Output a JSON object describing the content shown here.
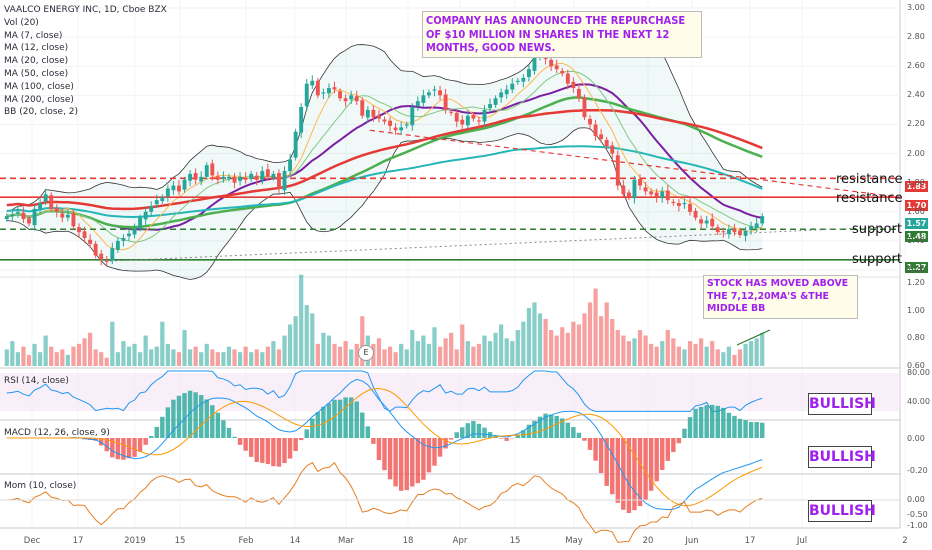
{
  "chart_data": {
    "type": "candlestick",
    "title": "VAALCO ENERGY INC, 1D, Cboe BZX",
    "ylim": [
      1.2,
      3.0
    ],
    "y_ticks": [
      "3.00",
      "2.80",
      "2.60",
      "2.40",
      "2.20",
      "2.00",
      "1.80",
      "1.60",
      "1.40",
      "1.20"
    ],
    "x_labels": [
      "Dec",
      "17",
      "2019",
      "15",
      "Feb",
      "14",
      "Mar",
      "18",
      "Apr",
      "15",
      "May",
      "20",
      "Jun",
      "17",
      "Jul",
      "2"
    ],
    "indicators": [
      "Vol (20)",
      "MA (7, close)",
      "MA (12, close)",
      "MA (20, close)",
      "MA (50, close)",
      "MA (100, close)",
      "MA (200, close)",
      "BB (20, close, 2)"
    ],
    "closes": [
      1.57,
      1.58,
      1.6,
      1.55,
      1.52,
      1.62,
      1.66,
      1.72,
      1.62,
      1.6,
      1.56,
      1.58,
      1.5,
      1.46,
      1.42,
      1.38,
      1.3,
      1.27,
      1.26,
      1.35,
      1.4,
      1.42,
      1.45,
      1.48,
      1.56,
      1.6,
      1.64,
      1.68,
      1.7,
      1.76,
      1.78,
      1.74,
      1.82,
      1.86,
      1.82,
      1.84,
      1.92,
      1.85,
      1.82,
      1.84,
      1.84,
      1.8,
      1.84,
      1.82,
      1.86,
      1.82,
      1.88,
      1.84,
      1.86,
      1.76,
      1.88,
      1.96,
      2.15,
      2.32,
      2.48,
      2.5,
      2.4,
      2.42,
      2.45,
      2.44,
      2.38,
      2.36,
      2.4,
      2.36,
      2.26,
      2.3,
      2.25,
      2.24,
      2.22,
      2.19,
      2.16,
      2.18,
      2.2,
      2.32,
      2.36,
      2.4,
      2.42,
      2.44,
      2.4,
      2.3,
      2.28,
      2.22,
      2.2,
      2.26,
      2.24,
      2.22,
      2.3,
      2.34,
      2.38,
      2.42,
      2.44,
      2.48,
      2.5,
      2.52,
      2.58,
      2.66,
      2.72,
      2.65,
      2.6,
      2.58,
      2.55,
      2.48,
      2.45,
      2.38,
      2.25,
      2.2,
      2.12,
      2.1,
      2.05,
      2.0,
      1.78,
      1.72,
      1.7,
      1.82,
      1.78,
      1.74,
      1.72,
      1.7,
      1.74,
      1.68,
      1.66,
      1.64,
      1.66,
      1.6,
      1.56,
      1.52,
      1.54,
      1.5,
      1.46,
      1.46,
      1.48,
      1.46,
      1.44,
      1.47,
      1.5,
      1.52,
      1.57
    ],
    "volumes": [
      0.72,
      0.78,
      0.7,
      0.74,
      0.68,
      0.76,
      0.7,
      0.82,
      0.74,
      0.7,
      0.72,
      0.68,
      0.74,
      0.76,
      0.8,
      0.84,
      0.72,
      0.7,
      0.66,
      0.92,
      0.7,
      0.78,
      0.74,
      0.76,
      0.7,
      0.82,
      0.72,
      0.74,
      0.92,
      0.76,
      0.72,
      0.7,
      0.86,
      0.72,
      0.74,
      0.7,
      0.76,
      0.72,
      0.7,
      0.7,
      0.74,
      0.72,
      0.7,
      0.74,
      0.7,
      0.72,
      0.7,
      0.74,
      0.78,
      0.72,
      0.82,
      0.9,
      0.96,
      1.26,
      1.04,
      0.98,
      0.76,
      0.84,
      0.82,
      0.76,
      0.74,
      0.78,
      0.72,
      0.76,
      0.96,
      0.82,
      0.76,
      0.8,
      0.72,
      0.74,
      0.7,
      0.76,
      0.72,
      0.86,
      0.78,
      0.82,
      0.76,
      0.88,
      0.74,
      0.8,
      0.84,
      0.72,
      0.9,
      0.78,
      0.74,
      0.76,
      0.82,
      0.78,
      0.84,
      0.9,
      0.8,
      0.78,
      0.86,
      0.92,
      1.02,
      1.06,
      0.98,
      0.94,
      0.86,
      0.82,
      0.88,
      0.84,
      0.92,
      0.9,
      0.98,
      1.06,
      1.16,
      0.96,
      1.06,
      0.94,
      0.86,
      0.82,
      0.78,
      0.8,
      0.86,
      0.82,
      0.76,
      0.74,
      0.78,
      0.86,
      0.8,
      0.74,
      0.72,
      0.78,
      0.76,
      0.8,
      0.74,
      0.78,
      0.72,
      0.7,
      0.74,
      0.68,
      0.72,
      0.76,
      0.78,
      0.8,
      0.84
    ],
    "ma_lines": [
      {
        "name": "MA (20, close)",
        "color": "#7b1fa2"
      },
      {
        "name": "MA (50, close)",
        "color": "#4caf50"
      },
      {
        "name": "MA (100, close)",
        "color": "#26b5b8"
      },
      {
        "name": "MA (200, close)",
        "color": "#e53935"
      }
    ],
    "levels": [
      {
        "label": "resistance",
        "value": 1.83,
        "tag": "1.83",
        "color": "#e53935",
        "dashed": true
      },
      {
        "label": "resistance",
        "value": 1.7,
        "tag": "1.70",
        "color": "#e53935",
        "dashed": false
      },
      {
        "label": "support",
        "value": 1.48,
        "tag": "1.48",
        "color": "#2e7d32",
        "dashed": true
      },
      {
        "label": "support",
        "value": 1.27,
        "tag": "1.27",
        "color": "#2e7d32",
        "dashed": false
      }
    ],
    "last_price_tag": "1.57",
    "annotations": [
      "COMPANY HAS ANNOUNCED THE REPURCHASE OF $10 MILLION IN SHARES IN THE NEXT 12 MONTHS, GOOD NEWS.",
      "STOCK HAS MOVED ABOVE THE 7,12,20MA'S &THE MIDDLE BB"
    ],
    "volume_axis": [
      "1.20",
      "1.00",
      "0.80",
      "0.60"
    ],
    "volume_unit": "M",
    "event_marker": "E",
    "subpanels": [
      {
        "name": "RSI (14, close)",
        "axis": [
          "80.00",
          "40.00"
        ],
        "badge": "BULLISH"
      },
      {
        "name": "MACD (12, 26, close, 9)",
        "axis": [
          "0.00",
          "-0.20"
        ],
        "badge": "BULLISH"
      },
      {
        "name": "Mom (10, close)",
        "axis": [
          "0.00",
          "-0.50",
          "-1.00"
        ],
        "badge": "BULLISH"
      }
    ]
  },
  "colors": {
    "up": "#26a69a",
    "down": "#ef5350",
    "purple": "#a020f0"
  }
}
